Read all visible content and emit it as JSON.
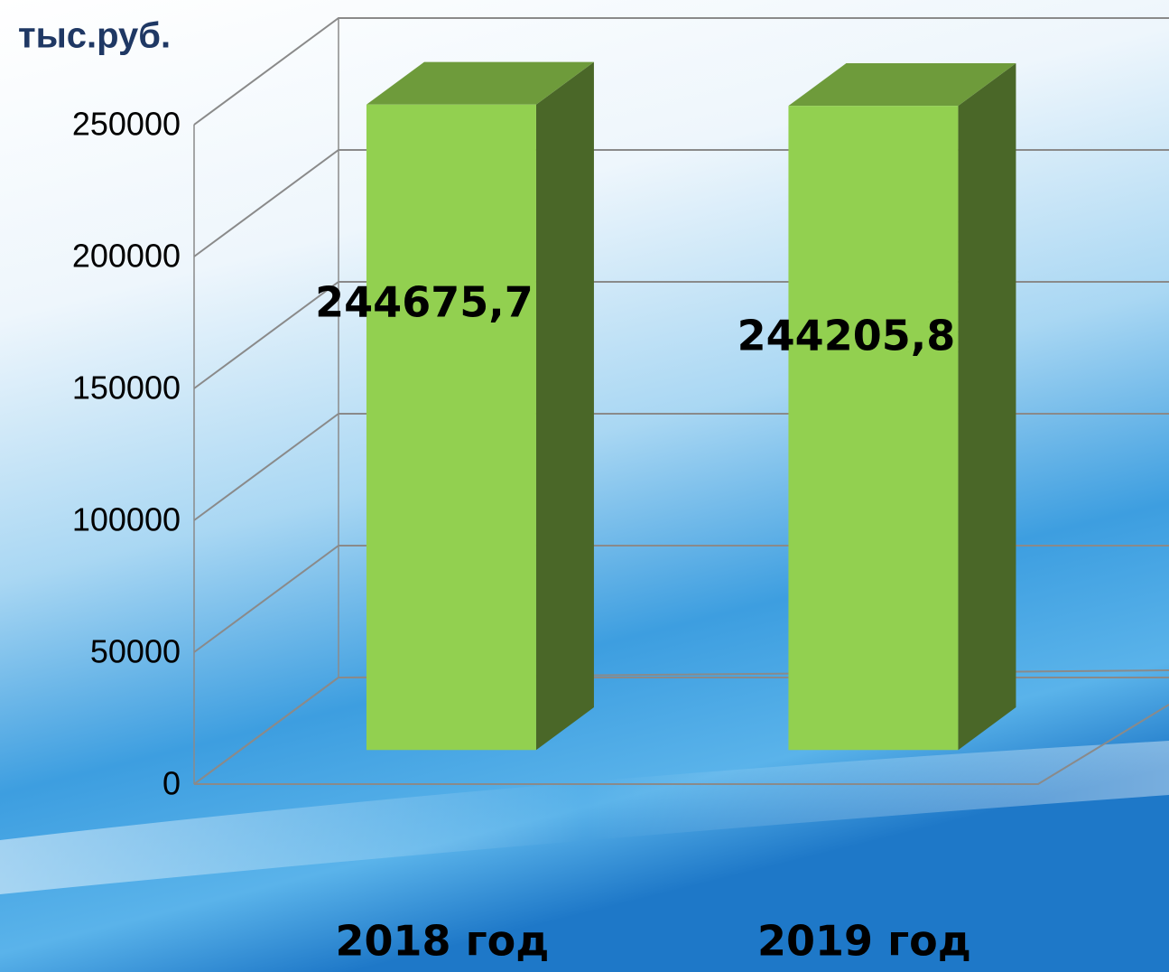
{
  "chart_data": {
    "type": "bar3d",
    "ylabel": "тыс.руб.",
    "categories": [
      "2018 год",
      "2019 год"
    ],
    "values": [
      244675.7,
      244205.8
    ],
    "value_labels": [
      "244675,7",
      "244205,8"
    ],
    "ylim": [
      0,
      250000
    ],
    "yticks": [
      0,
      50000,
      100000,
      150000,
      200000,
      250000
    ],
    "grid": true,
    "colors": {
      "front": "#92d050",
      "side": "#4a6728",
      "top": "#6e9b3b"
    }
  }
}
